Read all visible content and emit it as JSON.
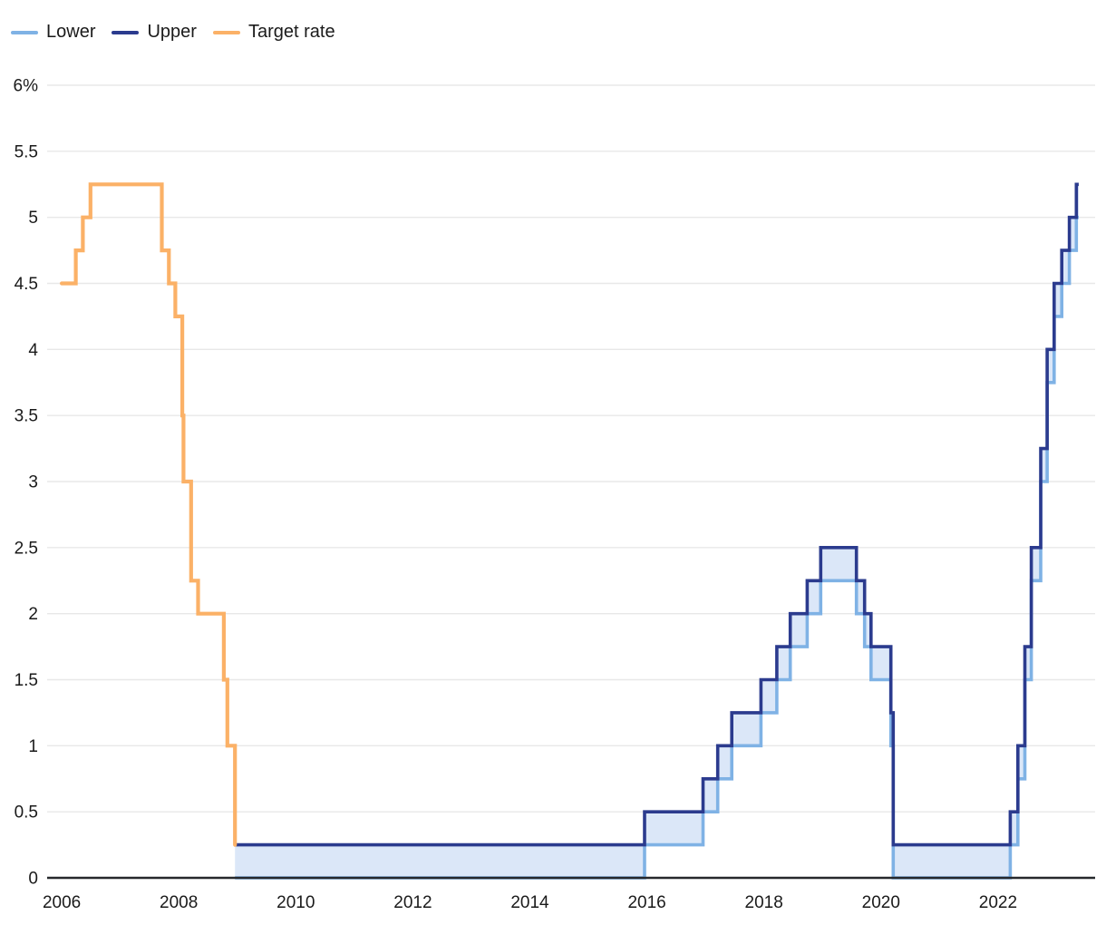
{
  "legend": {
    "items": [
      {
        "key": "lower",
        "label": "Lower"
      },
      {
        "key": "upper",
        "label": "Upper"
      },
      {
        "key": "target",
        "label": "Target rate"
      }
    ]
  },
  "chart_data": {
    "type": "line",
    "subtype": "step-after",
    "title": "",
    "xlabel": "",
    "ylabel": "",
    "grid": "horizontal",
    "legend_position": "top-left",
    "x_domain": [
      2005.75,
      2023.66
    ],
    "y_domain": [
      0,
      6
    ],
    "y_ticks": [
      {
        "value": 6,
        "label": "6%"
      },
      {
        "value": 5.5,
        "label": "5.5"
      },
      {
        "value": 5,
        "label": "5"
      },
      {
        "value": 4.5,
        "label": "4.5"
      },
      {
        "value": 4,
        "label": "4"
      },
      {
        "value": 3.5,
        "label": "3.5"
      },
      {
        "value": 3,
        "label": "3"
      },
      {
        "value": 2.5,
        "label": "2.5"
      },
      {
        "value": 2,
        "label": "2"
      },
      {
        "value": 1.5,
        "label": "1.5"
      },
      {
        "value": 1,
        "label": "1"
      },
      {
        "value": 0.5,
        "label": "0.5"
      },
      {
        "value": 0,
        "label": "0"
      }
    ],
    "x_ticks": [
      {
        "value": 2006,
        "label": "2006"
      },
      {
        "value": 2008,
        "label": "2008"
      },
      {
        "value": 2010,
        "label": "2010"
      },
      {
        "value": 2012,
        "label": "2012"
      },
      {
        "value": 2014,
        "label": "2014"
      },
      {
        "value": 2016,
        "label": "2016"
      },
      {
        "value": 2018,
        "label": "2018"
      },
      {
        "value": 2020,
        "label": "2020"
      },
      {
        "value": 2022,
        "label": "2022"
      }
    ],
    "target_series": {
      "name": "Target rate",
      "points": [
        [
          2006.0,
          4.5
        ],
        [
          2006.24,
          4.75
        ],
        [
          2006.36,
          5.0
        ],
        [
          2006.49,
          5.25
        ],
        [
          2007.71,
          4.75
        ],
        [
          2007.83,
          4.5
        ],
        [
          2007.94,
          4.25
        ],
        [
          2008.06,
          3.5
        ],
        [
          2008.08,
          3.0
        ],
        [
          2008.21,
          2.25
        ],
        [
          2008.33,
          2.0
        ],
        [
          2008.77,
          1.5
        ],
        [
          2008.83,
          1.0
        ],
        [
          2008.96,
          0.25
        ]
      ]
    },
    "band_series": {
      "lower_name": "Lower",
      "upper_name": "Upper",
      "steps": [
        [
          2008.96,
          0.0,
          0.25
        ],
        [
          2015.96,
          0.25,
          0.5
        ],
        [
          2016.96,
          0.5,
          0.75
        ],
        [
          2017.21,
          0.75,
          1.0
        ],
        [
          2017.45,
          1.0,
          1.25
        ],
        [
          2017.95,
          1.25,
          1.5
        ],
        [
          2018.22,
          1.5,
          1.75
        ],
        [
          2018.45,
          1.75,
          2.0
        ],
        [
          2018.74,
          2.0,
          2.25
        ],
        [
          2018.97,
          2.25,
          2.5
        ],
        [
          2019.58,
          2.0,
          2.25
        ],
        [
          2019.72,
          1.75,
          2.0
        ],
        [
          2019.83,
          1.5,
          1.75
        ],
        [
          2020.17,
          1.0,
          1.25
        ],
        [
          2020.21,
          0.0,
          0.25
        ],
        [
          2022.21,
          0.25,
          0.5
        ],
        [
          2022.34,
          0.75,
          1.0
        ],
        [
          2022.46,
          1.5,
          1.75
        ],
        [
          2022.57,
          2.25,
          2.5
        ],
        [
          2022.73,
          3.0,
          3.25
        ],
        [
          2022.84,
          3.75,
          4.0
        ],
        [
          2022.96,
          4.25,
          4.5
        ],
        [
          2023.09,
          4.5,
          4.75
        ],
        [
          2023.22,
          4.75,
          5.0
        ],
        [
          2023.34,
          5.0,
          5.25
        ]
      ],
      "end": 2023.38
    },
    "colors": {
      "lower": "#7FB2E5",
      "upper": "#2B3B8E",
      "target": "#FBB167",
      "band_fill": "#DBE7F8",
      "grid": "#E8E8E8",
      "axis": "#26282C",
      "text": "#1A1A1A"
    }
  }
}
